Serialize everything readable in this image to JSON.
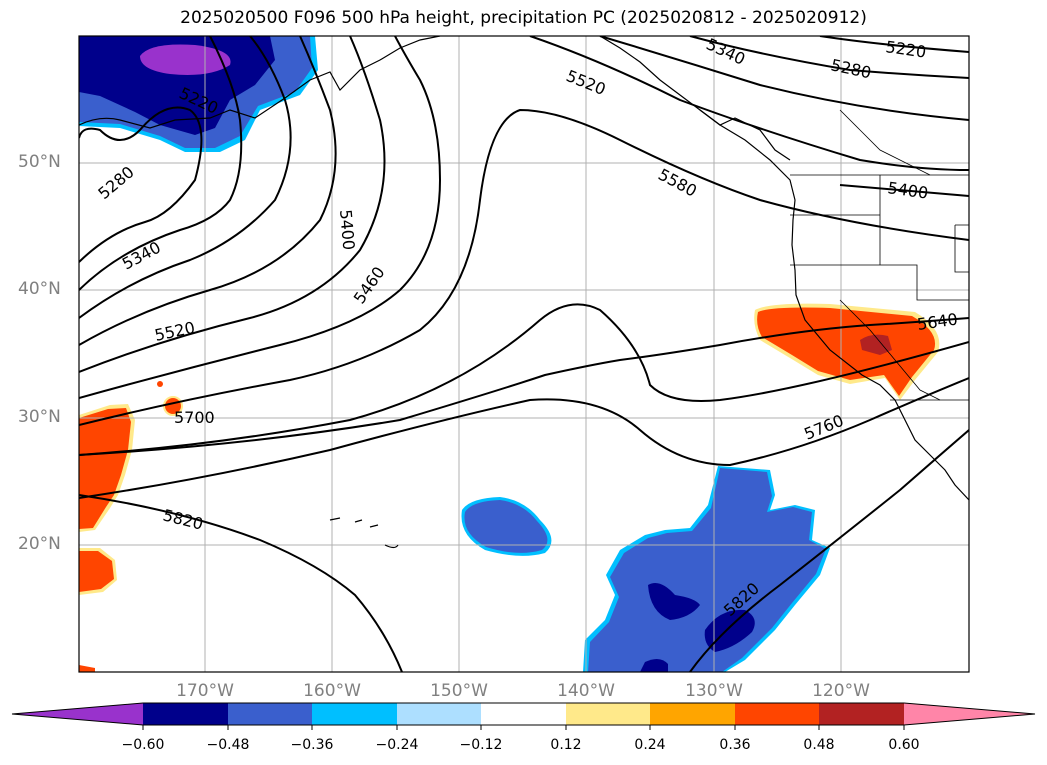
{
  "title": "2025020500 F096 500 hPa height, precipitation PC (2025020812 - 2025020912)",
  "latitude_labels": [
    "50°N",
    "40°N",
    "30°N",
    "20°N"
  ],
  "longitude_labels": [
    "170°W",
    "160°W",
    "150°W",
    "140°W",
    "130°W",
    "120°W"
  ],
  "height_contour_labels": [
    "5220",
    "5280",
    "5340",
    "5400",
    "5460",
    "5520",
    "5580",
    "5640",
    "5700",
    "5760",
    "5820",
    "5820",
    "5520",
    "5280",
    "5220",
    "5400",
    "5340"
  ],
  "colorbar": {
    "tick_labels": [
      "−0.60",
      "−0.48",
      "−0.36",
      "−0.24",
      "−0.12",
      "0.12",
      "0.24",
      "0.36",
      "0.48",
      "0.60"
    ],
    "colors": [
      "#9932CC",
      "#00008B",
      "#3A5FCD",
      "#00BFFF",
      "#ADDFFF",
      "#FFFFFF",
      "#FFE98A",
      "#FFA500",
      "#FF4500",
      "#B22222",
      "#FF85A8"
    ]
  },
  "shading_colors": {
    "deep_purple": "#9932CC",
    "navy": "#00008B",
    "royal_blue": "#3A5FCD",
    "deep_sky": "#00BFFF",
    "light_blue": "#ADDFFF",
    "pale_yellow": "#FFE98A",
    "orange": "#FFA500",
    "orange_red": "#FF4500",
    "firebrick": "#B22222"
  }
}
